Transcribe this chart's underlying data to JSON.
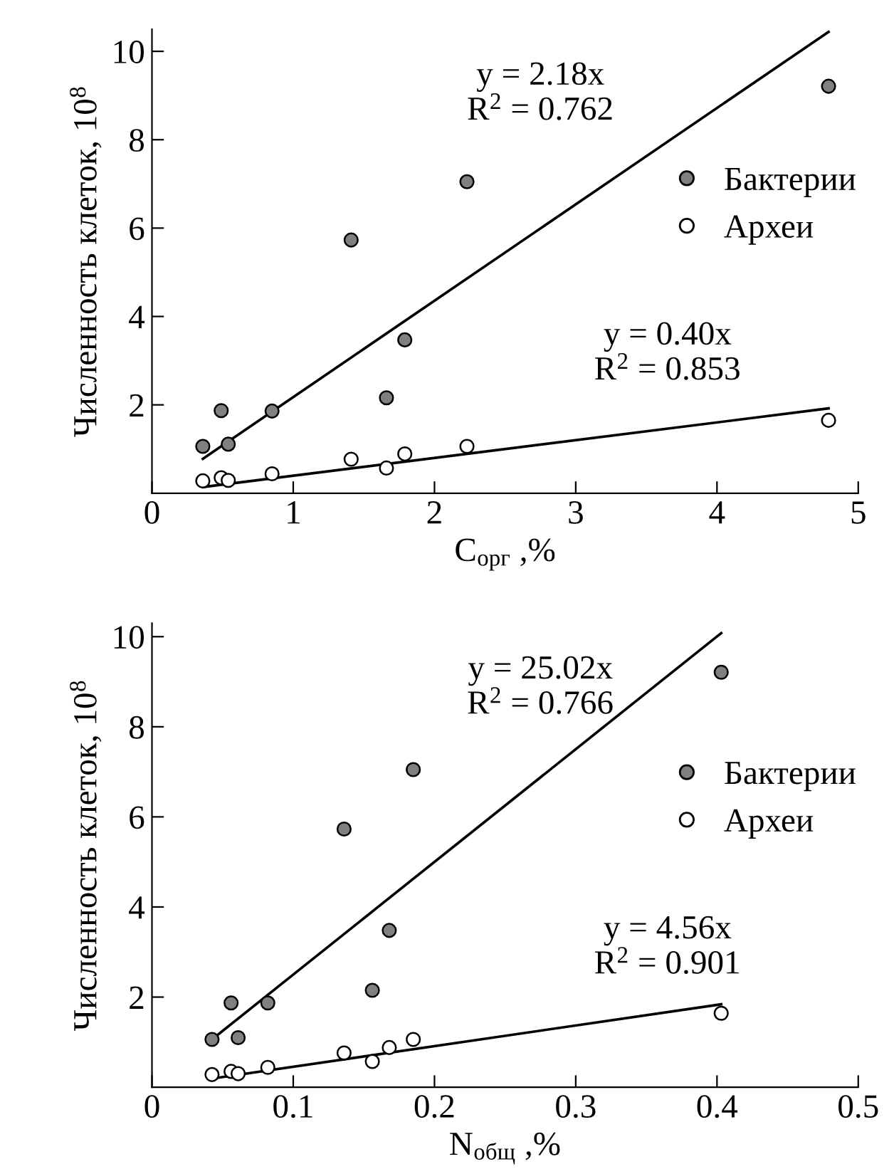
{
  "chart_data": [
    {
      "type": "scatter",
      "xlabel": "C$_{орг}$ ,%",
      "ylabel": "Численность клеток, 10$^{8}$",
      "xlim": [
        0,
        5
      ],
      "ylim": [
        0,
        10.5
      ],
      "xticks": [
        0,
        1,
        2,
        3,
        4,
        5
      ],
      "yticks": [
        2,
        4,
        6,
        8,
        10
      ],
      "legend": "right",
      "grid": false,
      "series": [
        {
          "name": "Бактерии",
          "marker": "circle",
          "color": "#808080",
          "x": [
            0.36,
            0.49,
            0.54,
            0.85,
            1.41,
            1.66,
            1.79,
            2.23,
            4.79
          ],
          "values": [
            1.06,
            1.87,
            1.11,
            1.86,
            5.73,
            2.16,
            3.47,
            7.05,
            9.21
          ]
        },
        {
          "name": "Археи",
          "marker": "circle",
          "color": "#ffffff",
          "x": [
            0.36,
            0.49,
            0.54,
            0.85,
            1.41,
            1.66,
            1.79,
            2.23,
            4.79
          ],
          "values": [
            0.28,
            0.35,
            0.29,
            0.44,
            0.77,
            0.57,
            0.89,
            1.06,
            1.65
          ]
        },
        {
          "type": "line",
          "color": "#000000",
          "x": [
            0.36,
            4.79
          ],
          "values": [
            0.78,
            10.44
          ]
        },
        {
          "type": "line",
          "color": "#000000",
          "x": [
            0.36,
            4.79
          ],
          "values": [
            0.14,
            1.92
          ]
        }
      ],
      "annotations": [
        "y = 2.18x\nR$^{2}$ = 0.762",
        "y = 0.40x\nR$^{2}$ = 0.853"
      ]
    },
    {
      "type": "scatter",
      "xlabel": "N$_{общ}$ ,%",
      "ylabel": "Численность клеток, 10$^{8}$",
      "xlim": [
        0,
        0.5
      ],
      "ylim": [
        0,
        10.3
      ],
      "xticks": [
        0,
        0.1,
        0.2,
        0.3,
        0.4,
        0.5
      ],
      "yticks": [
        2,
        4,
        6,
        8,
        10
      ],
      "legend": "right",
      "grid": false,
      "series": [
        {
          "name": "Бактерии",
          "marker": "circle",
          "color": "#808080",
          "x": [
            0.0425,
            0.056,
            0.061,
            0.082,
            0.136,
            0.156,
            0.168,
            0.185,
            0.403
          ],
          "values": [
            1.06,
            1.87,
            1.1,
            1.87,
            5.73,
            2.15,
            3.48,
            7.05,
            9.21
          ]
        },
        {
          "name": "Археи",
          "marker": "circle",
          "color": "#ffffff",
          "x": [
            0.0425,
            0.056,
            0.061,
            0.082,
            0.136,
            0.156,
            0.168,
            0.185,
            0.403
          ],
          "values": [
            0.28,
            0.35,
            0.3,
            0.44,
            0.76,
            0.57,
            0.88,
            1.06,
            1.64
          ]
        },
        {
          "type": "line",
          "color": "#000000",
          "x": [
            0.0425,
            0.403
          ],
          "values": [
            1.06,
            10.08
          ]
        },
        {
          "type": "line",
          "color": "#000000",
          "x": [
            0.0425,
            0.403
          ],
          "values": [
            0.19,
            1.84
          ]
        }
      ],
      "annotations": [
        "y = 25.02x\nR$^{2}$ = 0.766",
        "y = 4.56x\nR$^{2}$ = 0.901"
      ]
    }
  ]
}
